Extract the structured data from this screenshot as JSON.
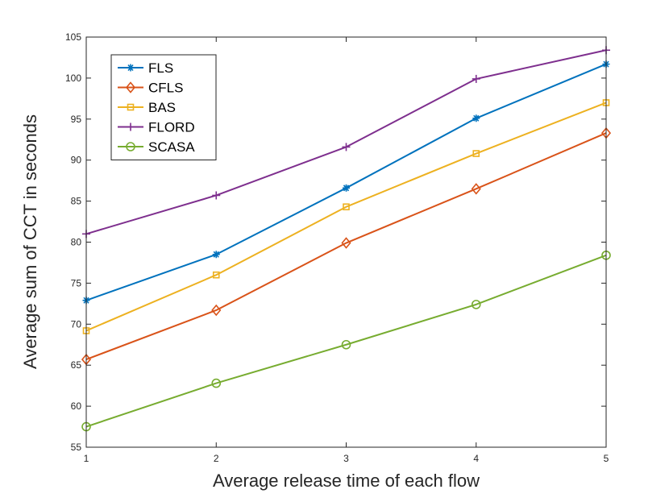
{
  "chart_data": {
    "type": "line",
    "title": "",
    "xlabel": "Average release time of each flow",
    "ylabel": "Average sum of CCT in seconds",
    "x": [
      1,
      2,
      3,
      4,
      5
    ],
    "xlim": [
      1,
      5
    ],
    "ylim": [
      55,
      105
    ],
    "xticks": [
      "1",
      "2",
      "3",
      "4",
      "5"
    ],
    "yticks": [
      "55",
      "60",
      "65",
      "70",
      "75",
      "80",
      "85",
      "90",
      "95",
      "100",
      "105"
    ],
    "grid": false,
    "legend_position": "top-left",
    "series": [
      {
        "name": "FLS",
        "color": "#0072BD",
        "marker": "asterisk",
        "values": [
          72.9,
          78.5,
          86.6,
          95.1,
          101.7
        ]
      },
      {
        "name": "CFLS",
        "color": "#D95319",
        "marker": "diamond",
        "values": [
          65.7,
          71.7,
          79.9,
          86.5,
          93.3
        ]
      },
      {
        "name": "BAS",
        "color": "#EDB120",
        "marker": "square",
        "values": [
          69.2,
          76.0,
          84.3,
          90.8,
          97.0
        ]
      },
      {
        "name": "FLORD",
        "color": "#7E2F8E",
        "marker": "plus",
        "values": [
          81.0,
          85.7,
          91.6,
          99.9,
          103.4
        ]
      },
      {
        "name": "SCASA",
        "color": "#77AC30",
        "marker": "circle",
        "values": [
          57.5,
          62.8,
          67.5,
          72.4,
          78.4
        ]
      }
    ]
  }
}
